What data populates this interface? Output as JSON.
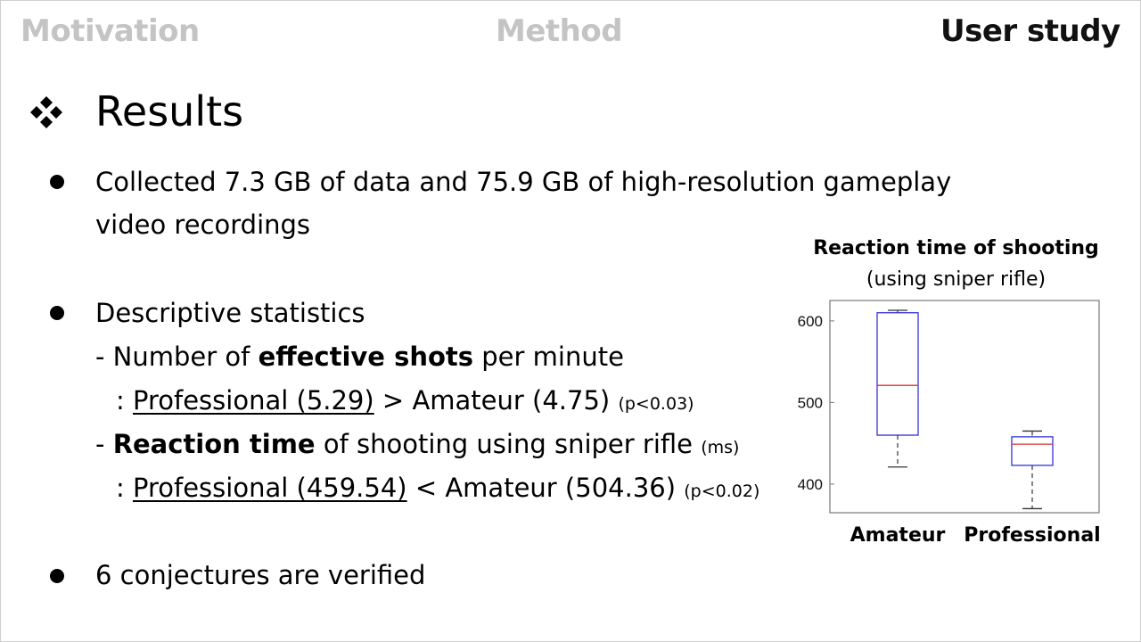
{
  "nav": {
    "items": [
      {
        "label": "Motivation",
        "state": "inactive"
      },
      {
        "label": "Method",
        "state": "inactive"
      },
      {
        "label": "User study",
        "state": "active"
      }
    ]
  },
  "heading": {
    "icon": "four-diamond-icon",
    "title": "Results"
  },
  "bullets": {
    "b1": {
      "line1": "Collected 7.3 GB of data and 75.9 GB of high-resolution gameplay",
      "line2": "video recordings"
    },
    "b2": {
      "title": "Descriptive statistics",
      "shots": {
        "prefix": "- Number of ",
        "bold": "effective shots",
        "suffix": " per minute",
        "colon": ": ",
        "pro": "Professional (5.29)",
        "compare": " > Amateur (4.75) ",
        "p": "(p<0.03)"
      },
      "reaction": {
        "dash": "- ",
        "bold": "Reaction time",
        "suffix": " of shooting using sniper rifle ",
        "unit": "(ms)",
        "colon": ": ",
        "pro": "Professional (459.54)",
        "compare": " < Amateur (504.36) ",
        "p": "(p<0.02)"
      }
    },
    "b3": {
      "text": "6 conjectures are verified"
    }
  },
  "colors": {
    "nav_inactive": "#c4c4c4",
    "box": "#3333dd",
    "median": "#dd3333"
  },
  "chart_data": {
    "type": "boxplot",
    "title": "Reaction time of shooting",
    "subtitle": "(using sniper rifle)",
    "categories": [
      "Amateur",
      "Professional"
    ],
    "yticks": [
      400,
      500,
      600
    ],
    "ylim": [
      365,
      625
    ],
    "boxes": [
      {
        "name": "Amateur",
        "whisker_low": 421,
        "q1": 460,
        "median": 521,
        "q3": 610,
        "whisker_high": 613
      },
      {
        "name": "Professional",
        "whisker_low": 370,
        "q1": 423,
        "median": 449,
        "q3": 458,
        "whisker_high": 465
      }
    ]
  }
}
